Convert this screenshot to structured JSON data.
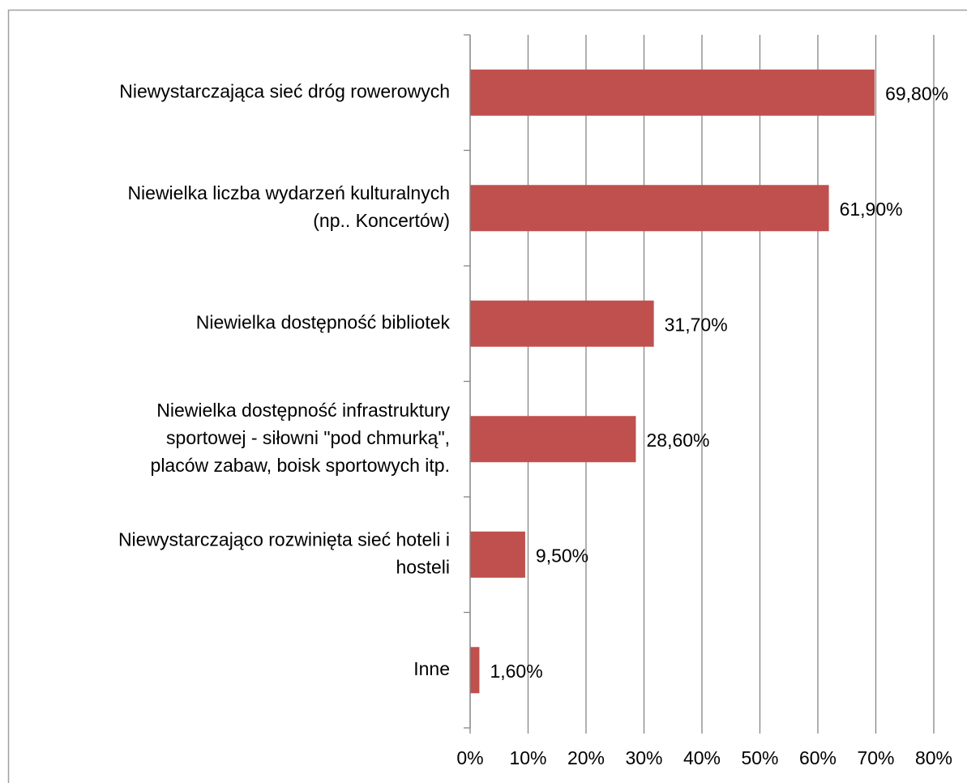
{
  "chart_data": {
    "type": "bar",
    "orientation": "horizontal",
    "categories": [
      "Niewystarczająca sieć dróg rowerowych",
      "Niewielka liczba wydarzeń kulturalnych\n(np.. Koncertów)",
      "Niewielka dostępność bibliotek",
      "Niewielka dostępność infrastruktury\nsportowej - siłowni \"pod chmurką\",\nplaców zabaw, boisk sportowych itp.",
      "Niewystarczająco rozwinięta sieć hoteli i\nhosteli",
      "Inne"
    ],
    "values": [
      69.8,
      61.9,
      31.7,
      28.6,
      9.5,
      1.6
    ],
    "value_labels": [
      "69,80%",
      "61,90%",
      "31,70%",
      "28,60%",
      "9,50%",
      "1,60%"
    ],
    "color": "#c0504d",
    "xlim": [
      0,
      80
    ],
    "xticks": [
      {
        "value": 0,
        "label": "0%"
      },
      {
        "value": 10,
        "label": "10%"
      },
      {
        "value": 20,
        "label": "20%"
      },
      {
        "value": 30,
        "label": "30%"
      },
      {
        "value": 40,
        "label": "40%"
      },
      {
        "value": 50,
        "label": "50%"
      },
      {
        "value": 60,
        "label": "60%"
      },
      {
        "value": 70,
        "label": "70%"
      },
      {
        "value": 80,
        "label": "80%"
      }
    ],
    "grid": true
  }
}
